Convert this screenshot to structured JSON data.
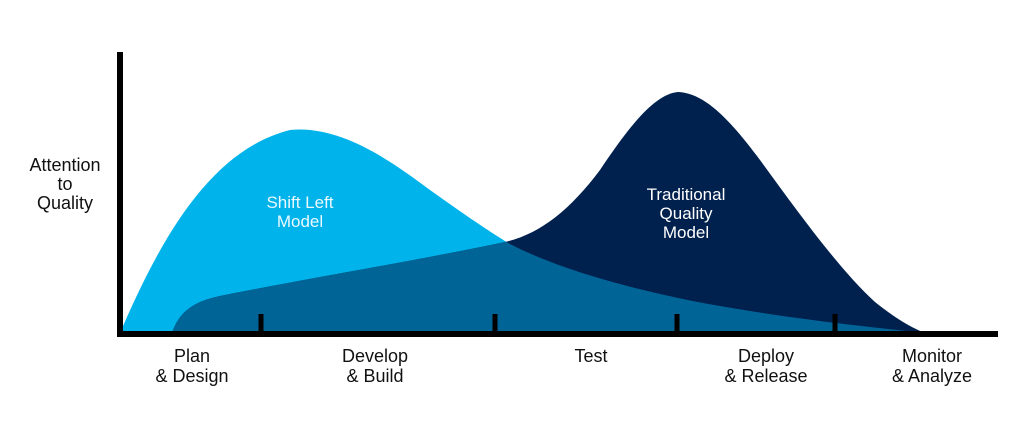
{
  "diagram": {
    "y_axis_label": "Attention\nto\nQuality",
    "stages": [
      {
        "label": "Plan\n& Design"
      },
      {
        "label": "Develop\n& Build"
      },
      {
        "label": "Test"
      },
      {
        "label": "Deploy\n& Release"
      },
      {
        "label": "Monitor\n& Analyze"
      }
    ],
    "curves": {
      "shift_left": {
        "label": "Shift Left\nModel",
        "color": "#00b4eb"
      },
      "traditional": {
        "label": "Traditional\nQuality\nModel",
        "color": "#00204e"
      },
      "overlap_color": "#006496"
    },
    "axis_color": "#000000"
  }
}
